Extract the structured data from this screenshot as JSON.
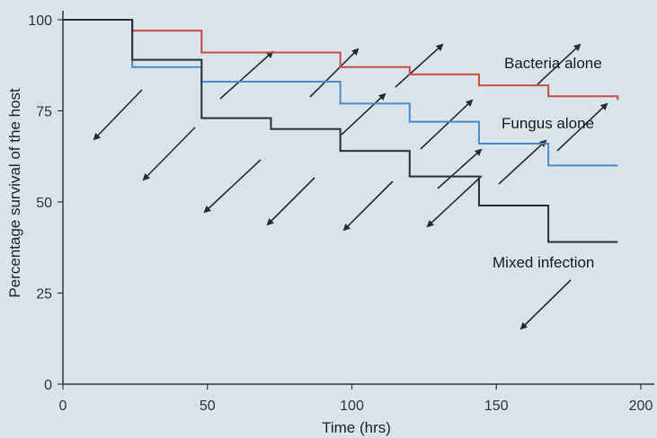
{
  "chart_data": {
    "type": "line",
    "xlabel": "Time (hrs)",
    "ylabel": "Percentage survival of the host",
    "xlim": [
      0,
      200
    ],
    "ylim": [
      0,
      100
    ],
    "x_ticks": [
      "0",
      "50",
      "100",
      "150",
      "200"
    ],
    "y_ticks": [
      "0",
      "25",
      "50",
      "75",
      "100"
    ],
    "grid": false,
    "step": true,
    "series": [
      {
        "name": "Bacteria alone",
        "color": "#c94a43",
        "x": [
          0,
          24,
          48,
          72,
          96,
          120,
          144,
          168,
          192
        ],
        "y": [
          100,
          97,
          91,
          91,
          87,
          85,
          82,
          79,
          78
        ]
      },
      {
        "name": "Fungus alone",
        "color": "#4d8ac8",
        "x": [
          0,
          24,
          48,
          72,
          96,
          120,
          144,
          168,
          192
        ],
        "y": [
          100,
          87,
          83,
          83,
          77,
          72,
          66,
          60,
          60
        ]
      },
      {
        "name": "Mixed infection",
        "color": "#2d2d2d",
        "x": [
          0,
          24,
          48,
          72,
          96,
          120,
          144,
          168,
          192
        ],
        "y": [
          100,
          89,
          73,
          70,
          64,
          57,
          49,
          39,
          39
        ]
      }
    ]
  }
}
